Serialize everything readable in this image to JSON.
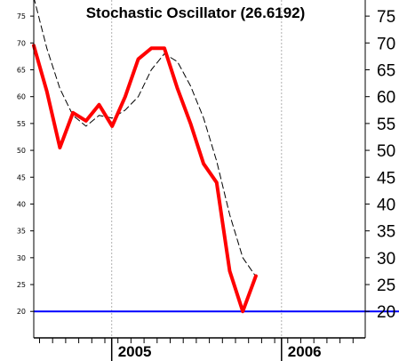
{
  "chart_data": {
    "type": "line",
    "title": "Stochastic Oscillator (26.6192)",
    "ylim": [
      13,
      78
    ],
    "y_ticks": [
      20,
      25,
      30,
      35,
      40,
      45,
      50,
      55,
      60,
      65,
      70,
      75
    ],
    "x_labels": [
      {
        "label": "2005",
        "month_index": 6
      },
      {
        "label": "2006",
        "month_index": 19
      }
    ],
    "grid": "vertical dashed lines at year boundaries",
    "series": [
      {
        "style": "thick red line",
        "color": "#ff0000",
        "values": [
          69.5,
          61,
          50.5,
          57,
          55.5,
          58.5,
          54.5,
          60,
          67,
          69,
          69,
          61.5,
          55,
          47.5,
          44,
          27.5,
          20,
          26.6
        ]
      },
      {
        "style": "thin black dashed line",
        "color": "#000000",
        "values": [
          78.5,
          69,
          61.5,
          56.5,
          54.5,
          56.5,
          56,
          57.5,
          60,
          65,
          68,
          66.5,
          62,
          56,
          48,
          38,
          30,
          26.5
        ]
      }
    ],
    "reference_line": {
      "value": 20,
      "color": "#0000ff"
    }
  }
}
